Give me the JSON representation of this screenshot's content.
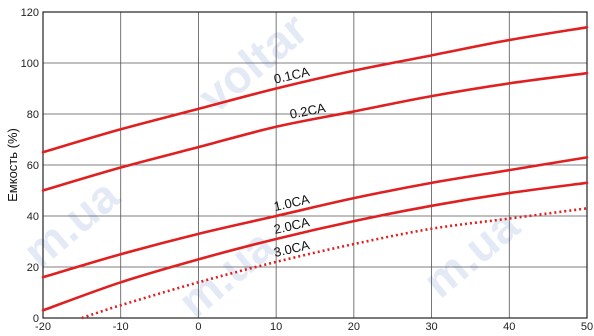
{
  "chart_data": {
    "type": "line",
    "title": "",
    "xlabel": "",
    "ylabel": "Емкость (%)",
    "xlim": [
      -20,
      50
    ],
    "ylim": [
      0,
      120
    ],
    "x_ticks": [
      -20,
      -10,
      0,
      10,
      20,
      30,
      40,
      50
    ],
    "y_ticks": [
      0,
      20,
      40,
      60,
      80,
      100,
      120
    ],
    "grid": true,
    "legend": "none",
    "line_color": "#e02020",
    "series": [
      {
        "name": "0.1CA",
        "style": "solid",
        "x": [
          -20,
          -10,
          0,
          10,
          20,
          30,
          40,
          50
        ],
        "y": [
          65,
          74,
          82,
          90,
          97,
          103,
          109,
          114
        ]
      },
      {
        "name": "0.2CA",
        "style": "solid",
        "x": [
          -20,
          -10,
          0,
          10,
          20,
          30,
          40,
          50
        ],
        "y": [
          50,
          59,
          67,
          75,
          81,
          87,
          92,
          96
        ]
      },
      {
        "name": "1.0CA",
        "style": "solid",
        "x": [
          -20,
          -10,
          0,
          10,
          20,
          30,
          40,
          50
        ],
        "y": [
          16,
          25,
          33,
          40,
          47,
          53,
          58,
          63
        ]
      },
      {
        "name": "2.0CA",
        "style": "solid",
        "x": [
          -20,
          -10,
          0,
          10,
          20,
          30,
          40,
          50
        ],
        "y": [
          3,
          14,
          23,
          31,
          38,
          44,
          49,
          53
        ]
      },
      {
        "name": "3.0CA",
        "style": "dotted",
        "x": [
          -15,
          -10,
          0,
          10,
          20,
          30,
          40,
          50
        ],
        "y": [
          0,
          5,
          14,
          22,
          29,
          35,
          39,
          43
        ]
      }
    ]
  },
  "watermark": "voltar.com.ua"
}
